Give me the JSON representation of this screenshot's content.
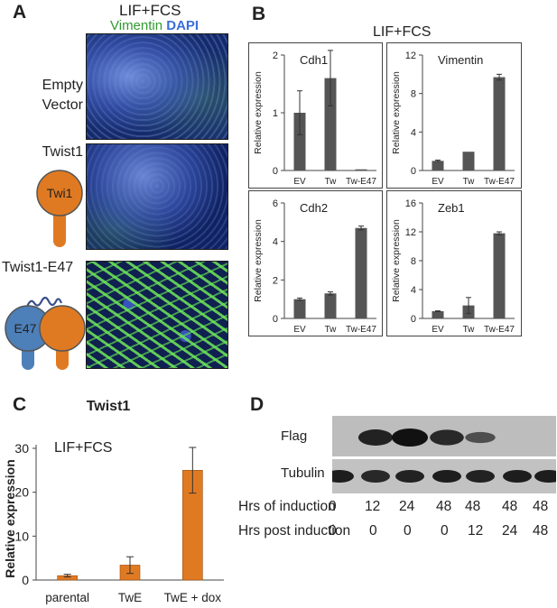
{
  "panel_a": {
    "label": "A",
    "condition": "LIF+FCS",
    "stain_vimentin": "Vimentin",
    "stain_dapi": "DAPI",
    "rows": [
      {
        "line1": "Empty",
        "line2": "Vector"
      },
      {
        "line1": "Twist1",
        "protein": "Twi1"
      },
      {
        "line1": "Twist1-E47",
        "protein": "E47"
      }
    ]
  },
  "panel_b": {
    "label": "B",
    "condition": "LIF+FCS"
  },
  "panel_c": {
    "label": "C",
    "condition": "LIF+FCS"
  },
  "panel_d": {
    "label": "D",
    "blot_labels": [
      "Flag",
      "Tubulin"
    ],
    "rows": [
      {
        "label": "Hrs of induction",
        "values": [
          "0",
          "12",
          "24",
          "48",
          "48",
          "48",
          "48"
        ]
      },
      {
        "label": "Hrs post induction",
        "values": [
          "0",
          "0",
          "0",
          "0",
          "12",
          "24",
          "48"
        ]
      }
    ],
    "flag_intensity": [
      0,
      0.85,
      1.0,
      0.8,
      0.45,
      0,
      0
    ],
    "tubulin_intensity": [
      0.9,
      0.8,
      0.85,
      0.9,
      0.85,
      0.9,
      0.9
    ]
  },
  "chart_data": [
    {
      "type": "bar",
      "title": "Cdh1",
      "ylabel": "Relative expression",
      "categories": [
        "EV",
        "Tw",
        "Tw-E47"
      ],
      "values": [
        1.0,
        1.6,
        0.02
      ],
      "errors": [
        0.38,
        0.48,
        0.0
      ],
      "ylim": [
        0,
        2
      ],
      "yticks": [
        "0",
        "1",
        "2"
      ],
      "color": "#555555"
    },
    {
      "type": "bar",
      "title": "Vimentin",
      "ylabel": "Relative expression",
      "categories": [
        "EV",
        "Tw",
        "Tw-E47"
      ],
      "values": [
        1.0,
        1.95,
        9.7
      ],
      "errors": [
        0.08,
        0.0,
        0.3
      ],
      "ylim": [
        0,
        12
      ],
      "yticks": [
        "0",
        "4",
        "8",
        "12"
      ],
      "color": "#555555"
    },
    {
      "type": "bar",
      "title": "Cdh2",
      "ylabel": "Relative expression",
      "categories": [
        "EV",
        "Tw",
        "Tw-E47"
      ],
      "values": [
        1.0,
        1.3,
        4.7
      ],
      "errors": [
        0.06,
        0.08,
        0.1
      ],
      "ylim": [
        0,
        6
      ],
      "yticks": [
        "0",
        "2",
        "4",
        "6"
      ],
      "color": "#555555"
    },
    {
      "type": "bar",
      "title": "Zeb1",
      "ylabel": "Relative expression",
      "categories": [
        "EV",
        "Tw",
        "Tw-E47"
      ],
      "values": [
        1.0,
        1.8,
        11.8
      ],
      "errors": [
        0.05,
        1.1,
        0.2
      ],
      "ylim": [
        0,
        16
      ],
      "yticks": [
        "0",
        "4",
        "8",
        "12",
        "16"
      ],
      "color": "#555555"
    },
    {
      "type": "bar",
      "title": "Twist1",
      "ylabel": "Relative expression",
      "categories": [
        "parental",
        "TwE",
        "TwE + dox"
      ],
      "values": [
        1.0,
        3.4,
        25.0
      ],
      "errors": [
        0.3,
        1.9,
        5.2
      ],
      "ylim": [
        0,
        30
      ],
      "yticks": [
        "0",
        "10",
        "20",
        "30"
      ],
      "color": "#E07A22"
    }
  ]
}
